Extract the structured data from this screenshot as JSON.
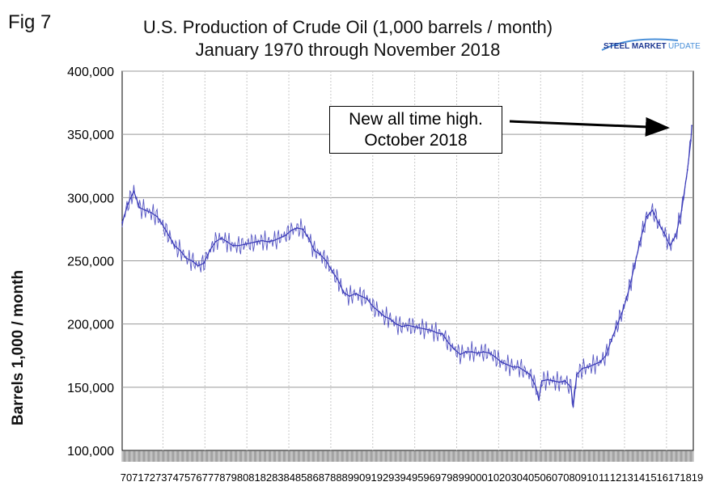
{
  "figure_label": "Fig 7",
  "title_line1": "U.S. Production of Crude Oil (1,000 barrels / month)",
  "title_line2": "January 1970 through November 2018",
  "logo": {
    "text_prefix": "STEEL MARKET",
    "text_suffix": "UPDATE",
    "icon": "swoosh-logo-icon",
    "prefix_color": "#1f3a93",
    "suffix_color": "#4a90d9"
  },
  "annotation": {
    "line1": "New all time high.",
    "line2": "October 2018"
  },
  "colors": {
    "series": "#3a3ab8",
    "grid": "#b0b0b0",
    "axis": "#000000"
  },
  "chart_data": {
    "type": "line",
    "title": "U.S. Production of Crude Oil (1,000 barrels / month)",
    "subtitle": "January 1970 through November 2018",
    "xlabel": "",
    "ylabel": "Barrels 1,000 / month",
    "ylim": [
      100000,
      400000
    ],
    "yticks": [
      100000,
      150000,
      200000,
      250000,
      300000,
      350000,
      400000
    ],
    "ytick_labels": [
      "100,000",
      "150,000",
      "200,000",
      "250,000",
      "300,000",
      "350,000",
      "400,000"
    ],
    "xlim": [
      1970,
      2019
    ],
    "xtick_labels": [
      "70",
      "71",
      "72",
      "73",
      "74",
      "75",
      "76",
      "77",
      "78",
      "79",
      "80",
      "81",
      "82",
      "83",
      "84",
      "85",
      "86",
      "87",
      "88",
      "89",
      "90",
      "91",
      "92",
      "93",
      "94",
      "95",
      "96",
      "97",
      "98",
      "99",
      "00",
      "01",
      "02",
      "03",
      "04",
      "05",
      "06",
      "07",
      "08",
      "09",
      "10",
      "11",
      "12",
      "13",
      "14",
      "15",
      "16",
      "17",
      "18",
      "19"
    ],
    "grid": "horizontal and vertical",
    "legend": "none",
    "series": [
      {
        "name": "",
        "x": [
          1970.0,
          1970.5,
          1971.0,
          1971.5,
          1972.0,
          1972.5,
          1973.0,
          1973.5,
          1974.0,
          1974.5,
          1975.0,
          1975.5,
          1976.0,
          1976.5,
          1977.0,
          1977.5,
          1978.0,
          1978.5,
          1979.0,
          1979.5,
          1980.0,
          1980.5,
          1981.0,
          1981.5,
          1982.0,
          1982.5,
          1983.0,
          1983.5,
          1984.0,
          1984.5,
          1985.0,
          1985.5,
          1986.0,
          1986.5,
          1987.0,
          1987.5,
          1988.0,
          1988.5,
          1989.0,
          1989.5,
          1990.0,
          1990.5,
          1991.0,
          1991.5,
          1992.0,
          1992.5,
          1993.0,
          1993.5,
          1994.0,
          1994.5,
          1995.0,
          1995.5,
          1996.0,
          1996.5,
          1997.0,
          1997.5,
          1998.0,
          1998.5,
          1999.0,
          1999.5,
          2000.0,
          2000.5,
          2001.0,
          2001.5,
          2002.0,
          2002.5,
          2003.0,
          2003.5,
          2004.0,
          2004.5,
          2005.0,
          2005.5,
          2005.75,
          2006.0,
          2006.5,
          2007.0,
          2007.5,
          2008.0,
          2008.5,
          2008.7,
          2009.0,
          2009.5,
          2010.0,
          2010.5,
          2011.0,
          2011.5,
          2012.0,
          2012.5,
          2013.0,
          2013.5,
          2014.0,
          2014.5,
          2015.0,
          2015.5,
          2016.0,
          2016.5,
          2017.0,
          2017.5,
          2018.0,
          2018.5,
          2018.79,
          2018.87
        ],
        "values": [
          280000,
          295000,
          305000,
          292000,
          290000,
          288000,
          285000,
          278000,
          270000,
          262000,
          258000,
          252000,
          250000,
          246000,
          248000,
          258000,
          265000,
          268000,
          265000,
          262000,
          262000,
          263000,
          264000,
          265000,
          266000,
          265000,
          266000,
          268000,
          270000,
          274000,
          276000,
          275000,
          268000,
          258000,
          255000,
          250000,
          242000,
          235000,
          225000,
          222000,
          224000,
          222000,
          220000,
          214000,
          210000,
          206000,
          204000,
          200000,
          198000,
          199000,
          198000,
          197000,
          196000,
          195000,
          193000,
          192000,
          185000,
          180000,
          176000,
          178000,
          178000,
          177000,
          178000,
          177000,
          174000,
          170000,
          168000,
          166000,
          166000,
          163000,
          160000,
          150000,
          140000,
          155000,
          156000,
          155000,
          154000,
          155000,
          150000,
          135000,
          160000,
          165000,
          166000,
          168000,
          170000,
          175000,
          188000,
          200000,
          212000,
          228000,
          248000,
          268000,
          285000,
          290000,
          280000,
          272000,
          262000,
          270000,
          290000,
          322000,
          345000,
          357000
        ]
      }
    ]
  }
}
